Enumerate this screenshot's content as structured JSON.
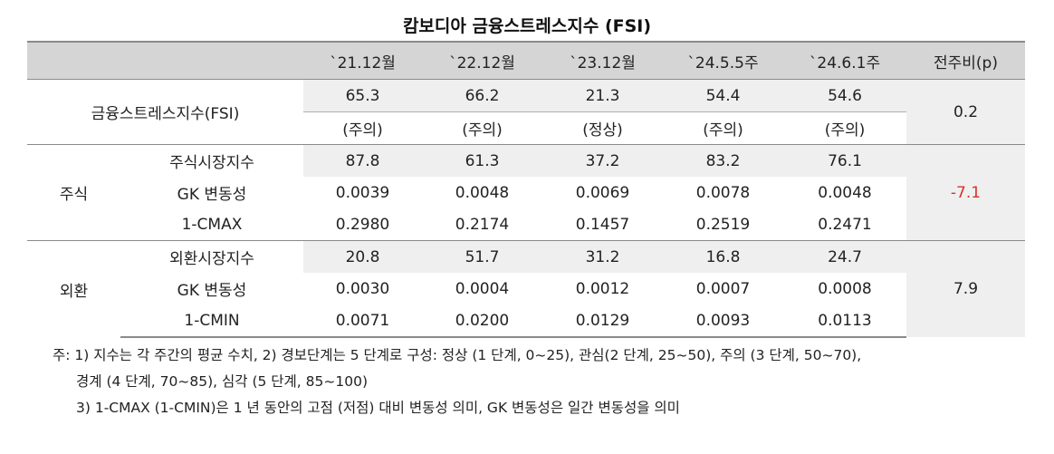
{
  "title": "캄보디아 금융스트레스지수 (FSI)",
  "header": {
    "periods": [
      "`21.12월",
      "`22.12월",
      "`23.12월",
      "`24.5.5주",
      "`24.6.1주"
    ],
    "change": "전주비(p)"
  },
  "fsi": {
    "label": "금융스트레스지수(FSI)",
    "values": [
      "65.3",
      "66.2",
      "21.3",
      "54.4",
      "54.6"
    ],
    "status": [
      "(주의)",
      "(주의)",
      "(정상)",
      "(주의)",
      "(주의)"
    ],
    "change": "0.2"
  },
  "stock": {
    "group": "주식",
    "change": "-7.1",
    "rows": [
      {
        "label": "주식시장지수",
        "values": [
          "87.8",
          "61.3",
          "37.2",
          "83.2",
          "76.1"
        ]
      },
      {
        "label": "GK 변동성",
        "values": [
          "0.0039",
          "0.0048",
          "0.0069",
          "0.0078",
          "0.0048"
        ]
      },
      {
        "label": "1-CMAX",
        "values": [
          "0.2980",
          "0.2174",
          "0.1457",
          "0.2519",
          "0.2471"
        ]
      }
    ]
  },
  "fx": {
    "group": "외환",
    "change": "7.9",
    "rows": [
      {
        "label": "외환시장지수",
        "values": [
          "20.8",
          "51.7",
          "31.2",
          "16.8",
          "24.7"
        ]
      },
      {
        "label": "GK 변동성",
        "values": [
          "0.0030",
          "0.0004",
          "0.0012",
          "0.0007",
          "0.0008"
        ]
      },
      {
        "label": "1-CMIN",
        "values": [
          "0.0071",
          "0.0200",
          "0.0129",
          "0.0093",
          "0.0113"
        ]
      }
    ]
  },
  "notes": [
    "주: 1) 지수는 각 주간의 평균 수치, 2) 경보단계는 5 단계로 구성: 정상 (1 단계, 0~25), 관심(2 단계, 25~50), 주의 (3 단계, 50~70),",
    "경계 (4 단계, 70~85), 심각 (5 단계, 85~100)",
    "3) 1-CMAX (1-CMIN)은 1 년 동안의 고점 (저점) 대비 변동성 의미, GK 변동성은 일간 변동성을 의미"
  ],
  "colors": {
    "header_bg": "#d5d5d5",
    "shaded_bg": "#efefef",
    "negative": "#d9302c"
  }
}
